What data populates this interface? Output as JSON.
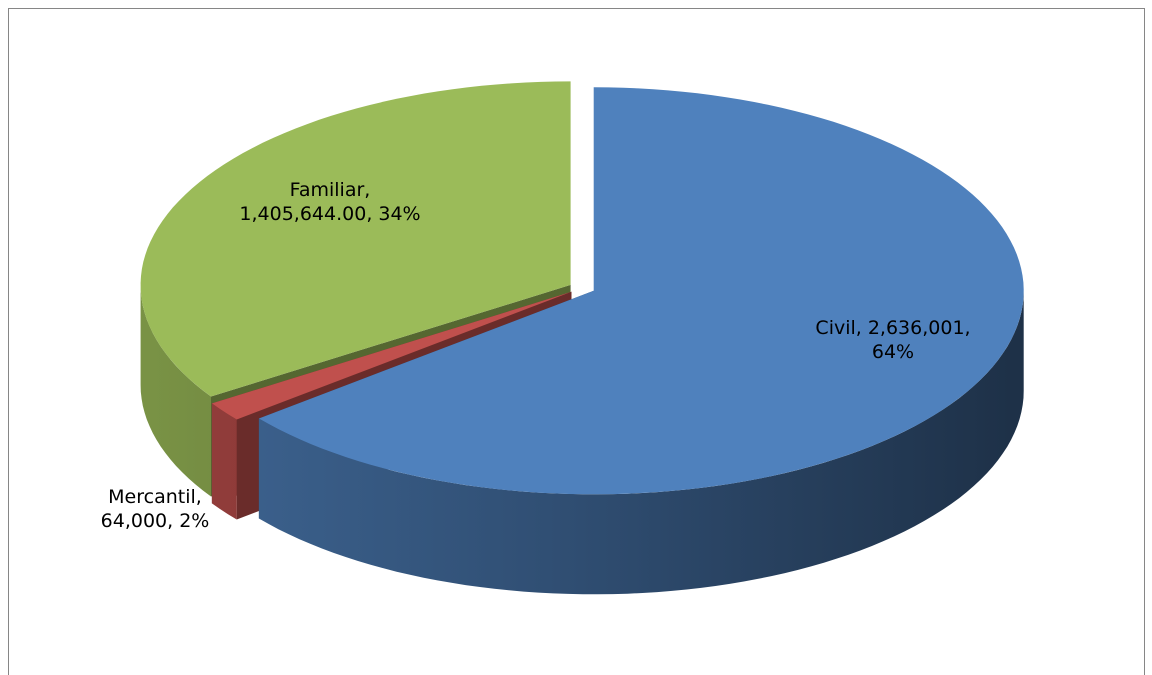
{
  "chart_data": {
    "type": "pie3d",
    "categories": [
      "Civil",
      "Mercantil",
      "Familiar"
    ],
    "values": [
      2636001,
      64000,
      1405644
    ],
    "value_labels": [
      "2,636,001",
      "64,000",
      "1,405,644.00"
    ],
    "percents": [
      64,
      2,
      34
    ],
    "percent_labels": [
      "64%",
      "2%",
      "34%"
    ],
    "colors": [
      "#4f81bd",
      "#c0504d",
      "#9bbb59"
    ]
  }
}
